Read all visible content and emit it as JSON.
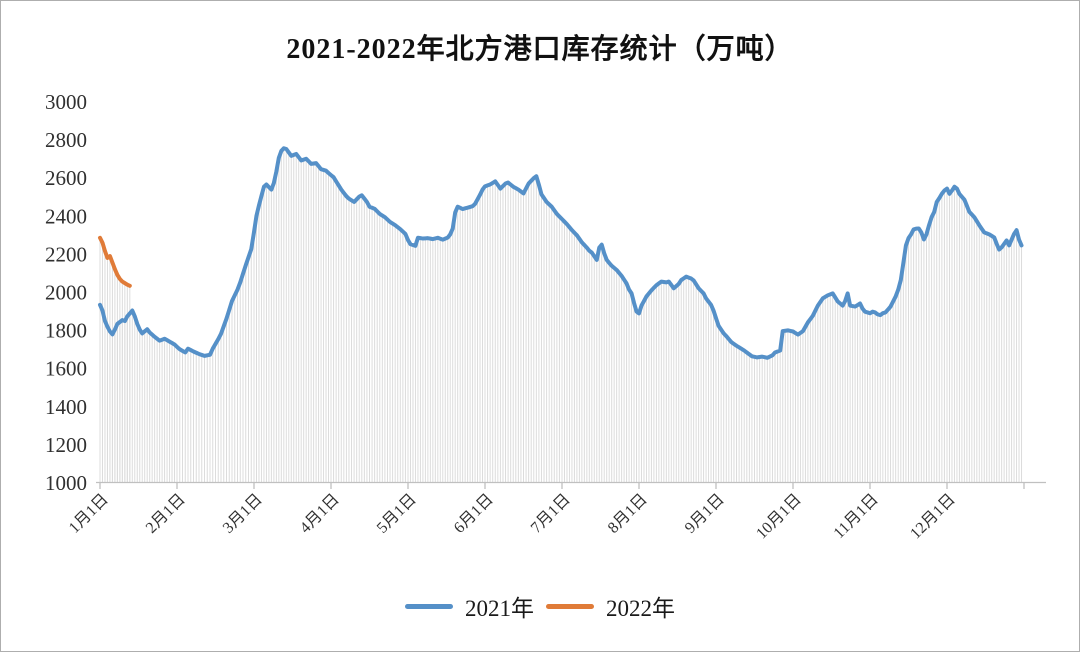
{
  "chart_data": {
    "type": "line",
    "title": "2021-2022年北方港口库存统计（万吨）",
    "xlabel": "",
    "ylabel": "",
    "ylim": [
      1000,
      3000
    ],
    "ytick_step": 200,
    "yticks": [
      1000,
      1200,
      1400,
      1600,
      1800,
      2000,
      2200,
      2400,
      2600,
      2800,
      3000
    ],
    "x_unit": "day_of_year",
    "xticklabels": [
      "1月1日",
      "2月1日",
      "3月1日",
      "4月1日",
      "5月1日",
      "6月1日",
      "7月1日",
      "8月1日",
      "9月1日",
      "10月1日",
      "11月1日",
      "12月1日"
    ],
    "grid": false,
    "legend_position": "bottom",
    "droplines": true,
    "dropline_color": "#dcdcdc",
    "axis_color": "#c0c0c0",
    "text_color": "#303030",
    "series": [
      {
        "name": "2021年",
        "color": "#5590c8",
        "points": [
          [
            1,
            1930
          ],
          [
            2,
            1900
          ],
          [
            3,
            1845
          ],
          [
            4,
            1815
          ],
          [
            5,
            1790
          ],
          [
            6,
            1775
          ],
          [
            7,
            1800
          ],
          [
            8,
            1830
          ],
          [
            10,
            1850
          ],
          [
            11,
            1845
          ],
          [
            12,
            1870
          ],
          [
            14,
            1900
          ],
          [
            15,
            1870
          ],
          [
            16,
            1830
          ],
          [
            17,
            1800
          ],
          [
            18,
            1780
          ],
          [
            20,
            1802
          ],
          [
            21,
            1785
          ],
          [
            23,
            1762
          ],
          [
            25,
            1742
          ],
          [
            27,
            1752
          ],
          [
            29,
            1737
          ],
          [
            31,
            1722
          ],
          [
            33,
            1697
          ],
          [
            35,
            1680
          ],
          [
            36,
            1700
          ],
          [
            38,
            1685
          ],
          [
            40,
            1672
          ],
          [
            42,
            1662
          ],
          [
            44,
            1668
          ],
          [
            45,
            1700
          ],
          [
            47,
            1750
          ],
          [
            48,
            1778
          ],
          [
            50,
            1858
          ],
          [
            52,
            1950
          ],
          [
            54,
            2010
          ],
          [
            55,
            2048
          ],
          [
            57,
            2138
          ],
          [
            59,
            2222
          ],
          [
            60,
            2312
          ],
          [
            61,
            2398
          ],
          [
            62,
            2452
          ],
          [
            63,
            2502
          ],
          [
            64,
            2550
          ],
          [
            65,
            2562
          ],
          [
            66,
            2548
          ],
          [
            67,
            2535
          ],
          [
            68,
            2570
          ],
          [
            69,
            2630
          ],
          [
            70,
            2702
          ],
          [
            71,
            2738
          ],
          [
            72,
            2752
          ],
          [
            73,
            2748
          ],
          [
            74,
            2730
          ],
          [
            75,
            2712
          ],
          [
            77,
            2722
          ],
          [
            79,
            2688
          ],
          [
            81,
            2697
          ],
          [
            83,
            2670
          ],
          [
            85,
            2674
          ],
          [
            87,
            2642
          ],
          [
            89,
            2634
          ],
          [
            90,
            2622
          ],
          [
            92,
            2600
          ],
          [
            93,
            2578
          ],
          [
            95,
            2535
          ],
          [
            97,
            2500
          ],
          [
            98,
            2487
          ],
          [
            100,
            2470
          ],
          [
            102,
            2498
          ],
          [
            103,
            2505
          ],
          [
            105,
            2470
          ],
          [
            106,
            2445
          ],
          [
            108,
            2434
          ],
          [
            110,
            2407
          ],
          [
            112,
            2390
          ],
          [
            114,
            2365
          ],
          [
            116,
            2348
          ],
          [
            118,
            2327
          ],
          [
            120,
            2302
          ],
          [
            121,
            2270
          ],
          [
            122,
            2248
          ],
          [
            124,
            2240
          ],
          [
            125,
            2282
          ],
          [
            127,
            2278
          ],
          [
            129,
            2280
          ],
          [
            131,
            2275
          ],
          [
            133,
            2282
          ],
          [
            135,
            2272
          ],
          [
            137,
            2283
          ],
          [
            138,
            2300
          ],
          [
            139,
            2330
          ],
          [
            140,
            2415
          ],
          [
            141,
            2445
          ],
          [
            143,
            2433
          ],
          [
            145,
            2440
          ],
          [
            147,
            2448
          ],
          [
            148,
            2460
          ],
          [
            150,
            2508
          ],
          [
            151,
            2535
          ],
          [
            152,
            2552
          ],
          [
            154,
            2562
          ],
          [
            156,
            2578
          ],
          [
            158,
            2540
          ],
          [
            160,
            2567
          ],
          [
            161,
            2572
          ],
          [
            163,
            2550
          ],
          [
            165,
            2535
          ],
          [
            167,
            2515
          ],
          [
            169,
            2567
          ],
          [
            171,
            2595
          ],
          [
            172,
            2605
          ],
          [
            173,
            2560
          ],
          [
            174,
            2510
          ],
          [
            176,
            2470
          ],
          [
            178,
            2445
          ],
          [
            180,
            2407
          ],
          [
            182,
            2380
          ],
          [
            184,
            2353
          ],
          [
            186,
            2322
          ],
          [
            188,
            2295
          ],
          [
            190,
            2258
          ],
          [
            192,
            2230
          ],
          [
            193,
            2214
          ],
          [
            194,
            2204
          ],
          [
            196,
            2166
          ],
          [
            197,
            2230
          ],
          [
            198,
            2246
          ],
          [
            199,
            2200
          ],
          [
            200,
            2166
          ],
          [
            201,
            2150
          ],
          [
            202,
            2135
          ],
          [
            204,
            2113
          ],
          [
            206,
            2082
          ],
          [
            208,
            2042
          ],
          [
            209,
            2010
          ],
          [
            210,
            1990
          ],
          [
            211,
            1940
          ],
          [
            212,
            1895
          ],
          [
            213,
            1885
          ],
          [
            214,
            1926
          ],
          [
            216,
            1974
          ],
          [
            218,
            2006
          ],
          [
            220,
            2033
          ],
          [
            222,
            2052
          ],
          [
            224,
            2048
          ],
          [
            225,
            2052
          ],
          [
            227,
            2017
          ],
          [
            229,
            2040
          ],
          [
            230,
            2060
          ],
          [
            232,
            2078
          ],
          [
            234,
            2068
          ],
          [
            235,
            2058
          ],
          [
            237,
            2017
          ],
          [
            239,
            1990
          ],
          [
            240,
            1964
          ],
          [
            242,
            1930
          ],
          [
            243,
            1900
          ],
          [
            245,
            1820
          ],
          [
            247,
            1780
          ],
          [
            248,
            1766
          ],
          [
            250,
            1734
          ],
          [
            252,
            1715
          ],
          [
            253,
            1707
          ],
          [
            255,
            1690
          ],
          [
            256,
            1680
          ],
          [
            258,
            1660
          ],
          [
            260,
            1654
          ],
          [
            262,
            1658
          ],
          [
            264,
            1652
          ],
          [
            266,
            1665
          ],
          [
            267,
            1680
          ],
          [
            269,
            1690
          ],
          [
            270,
            1792
          ],
          [
            272,
            1796
          ],
          [
            274,
            1790
          ],
          [
            276,
            1774
          ],
          [
            278,
            1792
          ],
          [
            280,
            1838
          ],
          [
            282,
            1873
          ],
          [
            284,
            1926
          ],
          [
            286,
            1964
          ],
          [
            288,
            1980
          ],
          [
            290,
            1990
          ],
          [
            292,
            1948
          ],
          [
            294,
            1926
          ],
          [
            295,
            1950
          ],
          [
            296,
            1990
          ],
          [
            297,
            1926
          ],
          [
            299,
            1921
          ],
          [
            301,
            1937
          ],
          [
            302,
            1910
          ],
          [
            303,
            1894
          ],
          [
            305,
            1886
          ],
          [
            306,
            1894
          ],
          [
            307,
            1890
          ],
          [
            308,
            1880
          ],
          [
            309,
            1876
          ],
          [
            310,
            1886
          ],
          [
            311,
            1890
          ],
          [
            312,
            1905
          ],
          [
            313,
            1921
          ],
          [
            315,
            1974
          ],
          [
            316,
            2010
          ],
          [
            317,
            2060
          ],
          [
            318,
            2150
          ],
          [
            319,
            2242
          ],
          [
            320,
            2280
          ],
          [
            321,
            2300
          ],
          [
            322,
            2326
          ],
          [
            323,
            2330
          ],
          [
            324,
            2331
          ],
          [
            325,
            2310
          ],
          [
            326,
            2273
          ],
          [
            327,
            2300
          ],
          [
            328,
            2348
          ],
          [
            329,
            2390
          ],
          [
            330,
            2417
          ],
          [
            331,
            2470
          ],
          [
            332,
            2490
          ],
          [
            333,
            2513
          ],
          [
            334,
            2530
          ],
          [
            335,
            2540
          ],
          [
            336,
            2513
          ],
          [
            337,
            2530
          ],
          [
            338,
            2550
          ],
          [
            339,
            2540
          ],
          [
            340,
            2512
          ],
          [
            342,
            2482
          ],
          [
            344,
            2418
          ],
          [
            346,
            2390
          ],
          [
            348,
            2348
          ],
          [
            350,
            2310
          ],
          [
            352,
            2300
          ],
          [
            354,
            2284
          ],
          [
            355,
            2250
          ],
          [
            356,
            2220
          ],
          [
            357,
            2232
          ],
          [
            359,
            2268
          ],
          [
            360,
            2242
          ],
          [
            362,
            2302
          ],
          [
            363,
            2322
          ],
          [
            364,
            2272
          ],
          [
            365,
            2242
          ]
        ]
      },
      {
        "name": "2022年",
        "color": "#e07b38",
        "points": [
          [
            1,
            2282
          ],
          [
            2,
            2256
          ],
          [
            3,
            2212
          ],
          [
            4,
            2176
          ],
          [
            5,
            2186
          ],
          [
            6,
            2152
          ],
          [
            7,
            2117
          ],
          [
            8,
            2087
          ],
          [
            9,
            2066
          ],
          [
            10,
            2052
          ],
          [
            11,
            2044
          ],
          [
            12,
            2036
          ],
          [
            13,
            2030
          ]
        ]
      }
    ]
  }
}
